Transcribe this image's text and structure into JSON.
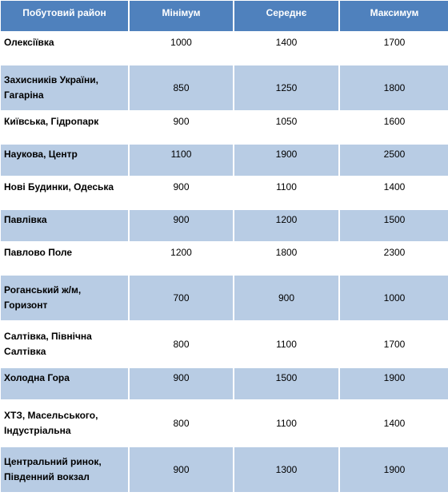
{
  "table": {
    "headers": [
      "Побутовий район",
      "Мінімум",
      "Середнє",
      "Максимум"
    ],
    "rows": [
      [
        "Олексіївка",
        "1000",
        "1400",
        "1700"
      ],
      [
        "Захисників України, Гагаріна",
        "850",
        "1250",
        "1800"
      ],
      [
        "Київська, Гідропарк",
        "900",
        "1050",
        "1600"
      ],
      [
        "Наукова, Центр",
        "1100",
        "1900",
        "2500"
      ],
      [
        "Нові Будинки, Одеська",
        "900",
        "1100",
        "1400"
      ],
      [
        "Павлівка",
        "900",
        "1200",
        "1500"
      ],
      [
        "Павлово Поле",
        "1200",
        "1800",
        "2300"
      ],
      [
        "Роганський ж/м, Горизонт",
        "700",
        "900",
        "1000"
      ],
      [
        "Салтівка, Північна Салтівка",
        "800",
        "1100",
        "1700"
      ],
      [
        "Холодна Гора",
        "900",
        "1500",
        "1900"
      ],
      [
        "ХТЗ, Масельського, Індустріальна",
        "800",
        "1100",
        "1400"
      ],
      [
        "Центральний ринок, Південний вокзал",
        "900",
        "1300",
        "1900"
      ]
    ]
  },
  "colors": {
    "header_bg": "#4f81bd",
    "header_text": "#ffffff",
    "band_row": "#b8cce4",
    "plain_row": "#ffffff"
  }
}
